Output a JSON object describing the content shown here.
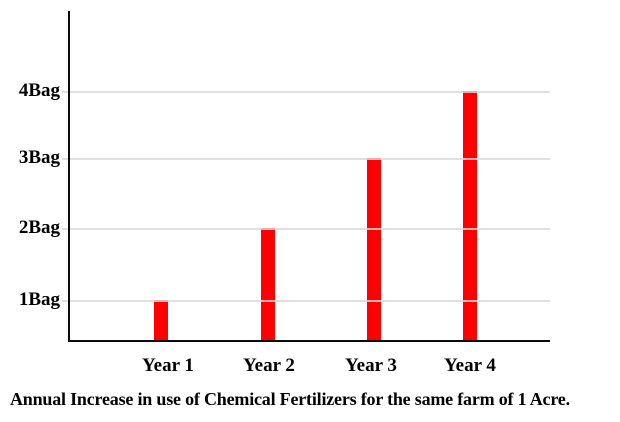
{
  "chart_data": {
    "type": "bar",
    "caption": "Annual Increase in use of Chemical Fertilizers for the same farm of 1 Acre.",
    "categories": [
      "Year 1",
      "Year 2",
      "Year 3",
      "Year 4"
    ],
    "values": [
      1,
      2,
      3,
      4
    ],
    "value_unit": "Bag",
    "y_tick_labels": [
      "1Bag",
      "2Bag",
      "3Bag",
      "4Bag"
    ],
    "ylim": [
      0,
      4
    ],
    "grid": true,
    "legend": false,
    "bar_color": "#FF0000",
    "gridline_color": "#D9D9D9",
    "axis_color": "#0A0A0A",
    "text_color": "#000000",
    "background_color": "#FFFFFF"
  }
}
